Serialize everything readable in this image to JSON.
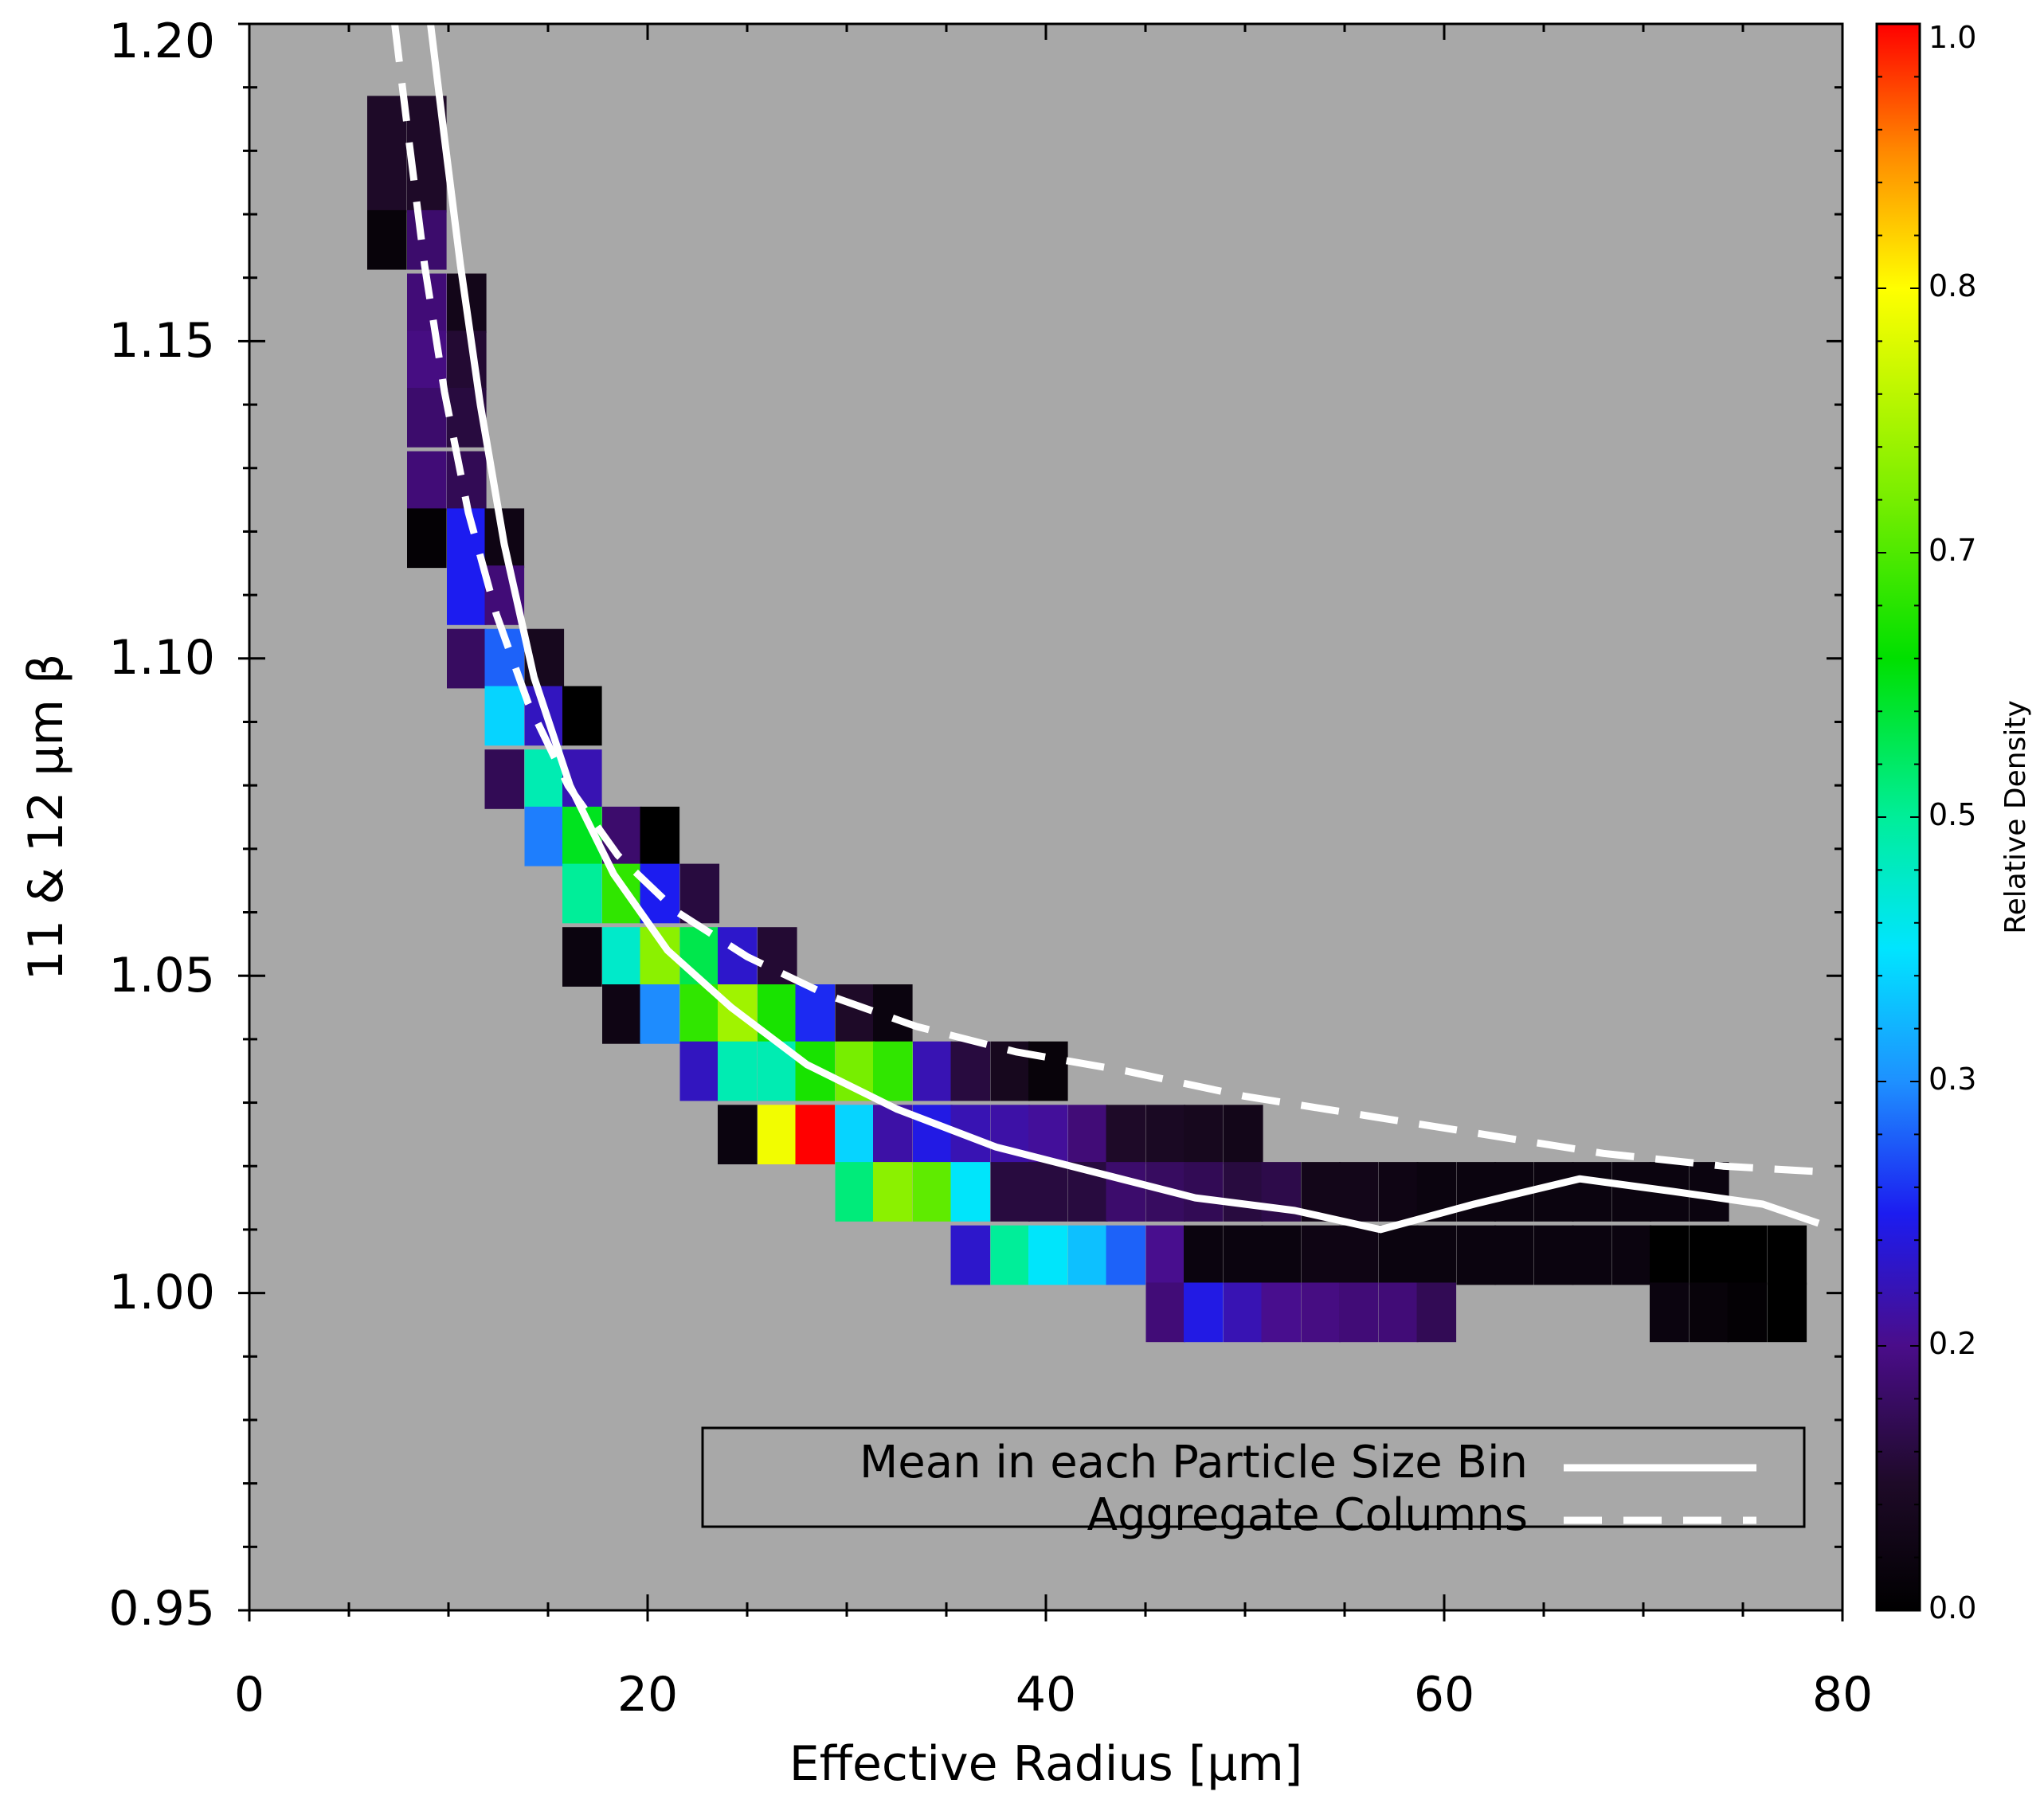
{
  "chart_data": {
    "type": "heatmap",
    "title": "",
    "xlabel": "Effective Radius [μm]",
    "ylabel": "11 & 12 μm β",
    "xlim": [
      0,
      80
    ],
    "ylim": [
      0.95,
      1.2
    ],
    "x_ticks": [
      "0",
      "20",
      "40",
      "60",
      "80"
    ],
    "x_tick_values": [
      0,
      20,
      40,
      60,
      80
    ],
    "y_ticks": [
      "0.95",
      "1.00",
      "1.05",
      "1.10",
      "1.15",
      "1.20"
    ],
    "y_tick_values": [
      0.95,
      1.0,
      1.05,
      1.1,
      1.15,
      1.2
    ],
    "colorbar": {
      "label": "Relative Density",
      "range": [
        0,
        1
      ],
      "ticks": [
        "0.0",
        "0.2",
        "0.3",
        "0.5",
        "0.7",
        "0.8",
        "1.0"
      ],
      "tick_values": [
        0.0,
        0.167,
        0.333,
        0.5,
        0.667,
        0.833,
        1.0
      ]
    },
    "bin": {
      "dx": 1.96,
      "dy": 0.0093
    },
    "cells": [
      [
        6.9,
        1.184,
        0.08
      ],
      [
        8.9,
        1.184,
        0.08
      ],
      [
        6.9,
        1.175,
        0.08
      ],
      [
        8.9,
        1.175,
        0.08
      ],
      [
        6.9,
        1.166,
        0.02
      ],
      [
        8.9,
        1.166,
        0.14
      ],
      [
        8.9,
        1.156,
        0.15
      ],
      [
        10.9,
        1.156,
        0.05
      ],
      [
        8.9,
        1.147,
        0.16
      ],
      [
        10.9,
        1.147,
        0.09
      ],
      [
        8.9,
        1.138,
        0.14
      ],
      [
        10.9,
        1.138,
        0.1
      ],
      [
        8.9,
        1.128,
        0.15
      ],
      [
        10.9,
        1.128,
        0.12
      ],
      [
        8.9,
        1.119,
        0.01
      ],
      [
        10.9,
        1.119,
        0.25
      ],
      [
        12.8,
        1.119,
        0.04
      ],
      [
        10.9,
        1.11,
        0.25
      ],
      [
        12.8,
        1.11,
        0.15
      ],
      [
        10.9,
        1.1,
        0.13
      ],
      [
        12.8,
        1.1,
        0.3
      ],
      [
        14.8,
        1.1,
        0.06
      ],
      [
        12.8,
        1.091,
        0.4
      ],
      [
        14.8,
        1.091,
        0.21
      ],
      [
        16.7,
        1.091,
        0.0
      ],
      [
        12.8,
        1.081,
        0.12
      ],
      [
        14.8,
        1.081,
        0.48
      ],
      [
        16.7,
        1.081,
        0.2
      ],
      [
        14.8,
        1.072,
        0.32
      ],
      [
        16.7,
        1.072,
        0.58
      ],
      [
        18.7,
        1.072,
        0.14
      ],
      [
        20.6,
        1.072,
        0.0
      ],
      [
        16.7,
        1.063,
        0.5
      ],
      [
        18.7,
        1.063,
        0.64
      ],
      [
        20.6,
        1.063,
        0.25
      ],
      [
        22.6,
        1.063,
        0.1
      ],
      [
        16.7,
        1.053,
        0.03
      ],
      [
        18.7,
        1.053,
        0.46
      ],
      [
        20.6,
        1.053,
        0.72
      ],
      [
        22.6,
        1.053,
        0.55
      ],
      [
        24.5,
        1.053,
        0.22
      ],
      [
        26.5,
        1.053,
        0.09
      ],
      [
        18.7,
        1.044,
        0.04
      ],
      [
        20.6,
        1.044,
        0.33
      ],
      [
        22.6,
        1.044,
        0.64
      ],
      [
        24.5,
        1.044,
        0.74
      ],
      [
        26.5,
        1.044,
        0.62
      ],
      [
        28.4,
        1.044,
        0.26
      ],
      [
        30.4,
        1.044,
        0.08
      ],
      [
        32.3,
        1.044,
        0.03
      ],
      [
        22.6,
        1.035,
        0.21
      ],
      [
        24.5,
        1.035,
        0.48
      ],
      [
        26.5,
        1.035,
        0.48
      ],
      [
        28.4,
        1.035,
        0.62
      ],
      [
        30.4,
        1.035,
        0.7
      ],
      [
        32.3,
        1.035,
        0.64
      ],
      [
        34.3,
        1.035,
        0.2
      ],
      [
        36.2,
        1.035,
        0.1
      ],
      [
        38.2,
        1.035,
        0.06
      ],
      [
        40.1,
        1.035,
        0.02
      ],
      [
        24.5,
        1.025,
        0.03
      ],
      [
        26.5,
        1.025,
        0.82
      ],
      [
        28.4,
        1.025,
        1.0
      ],
      [
        30.4,
        1.025,
        0.4
      ],
      [
        32.3,
        1.025,
        0.19
      ],
      [
        34.3,
        1.025,
        0.24
      ],
      [
        36.2,
        1.025,
        0.2
      ],
      [
        38.2,
        1.025,
        0.19
      ],
      [
        40.1,
        1.025,
        0.18
      ],
      [
        42.1,
        1.025,
        0.15
      ],
      [
        44.0,
        1.025,
        0.08
      ],
      [
        46.0,
        1.025,
        0.07
      ],
      [
        47.9,
        1.025,
        0.06
      ],
      [
        49.9,
        1.025,
        0.05
      ],
      [
        30.4,
        1.016,
        0.52
      ],
      [
        32.3,
        1.016,
        0.72
      ],
      [
        34.3,
        1.016,
        0.68
      ],
      [
        36.2,
        1.016,
        0.42
      ],
      [
        38.2,
        1.016,
        0.1
      ],
      [
        40.1,
        1.016,
        0.1
      ],
      [
        42.1,
        1.016,
        0.1
      ],
      [
        44.0,
        1.016,
        0.14
      ],
      [
        46.0,
        1.016,
        0.13
      ],
      [
        47.9,
        1.016,
        0.12
      ],
      [
        49.9,
        1.016,
        0.1
      ],
      [
        51.8,
        1.016,
        0.11
      ],
      [
        53.8,
        1.016,
        0.05
      ],
      [
        55.7,
        1.016,
        0.05
      ],
      [
        57.7,
        1.016,
        0.04
      ],
      [
        59.6,
        1.016,
        0.03
      ],
      [
        61.6,
        1.016,
        0.03
      ],
      [
        63.5,
        1.016,
        0.03
      ],
      [
        65.5,
        1.016,
        0.03
      ],
      [
        67.4,
        1.016,
        0.03
      ],
      [
        69.4,
        1.016,
        0.03
      ],
      [
        71.3,
        1.016,
        0.03
      ],
      [
        73.3,
        1.016,
        0.03
      ],
      [
        36.2,
        1.006,
        0.22
      ],
      [
        38.2,
        1.006,
        0.5
      ],
      [
        40.1,
        1.006,
        0.42
      ],
      [
        42.1,
        1.006,
        0.38
      ],
      [
        44.0,
        1.006,
        0.3
      ],
      [
        46.0,
        1.006,
        0.17
      ],
      [
        47.9,
        1.006,
        0.03
      ],
      [
        49.9,
        1.006,
        0.03
      ],
      [
        51.8,
        1.006,
        0.03
      ],
      [
        53.8,
        1.006,
        0.04
      ],
      [
        55.7,
        1.006,
        0.04
      ],
      [
        57.7,
        1.006,
        0.03
      ],
      [
        59.6,
        1.006,
        0.03
      ],
      [
        61.6,
        1.006,
        0.03
      ],
      [
        63.5,
        1.006,
        0.03
      ],
      [
        65.5,
        1.006,
        0.03
      ],
      [
        67.4,
        1.006,
        0.03
      ],
      [
        69.4,
        1.006,
        0.03
      ],
      [
        71.3,
        1.006,
        0.0
      ],
      [
        73.3,
        1.006,
        0.0
      ],
      [
        75.2,
        1.006,
        0.0
      ],
      [
        77.2,
        1.006,
        0.0
      ],
      [
        46.0,
        0.997,
        0.15
      ],
      [
        47.9,
        0.997,
        0.24
      ],
      [
        49.9,
        0.997,
        0.2
      ],
      [
        51.8,
        0.997,
        0.17
      ],
      [
        53.8,
        0.997,
        0.16
      ],
      [
        55.7,
        0.997,
        0.15
      ],
      [
        57.7,
        0.997,
        0.15
      ],
      [
        59.6,
        0.997,
        0.12
      ],
      [
        71.3,
        0.997,
        0.03
      ],
      [
        73.3,
        0.997,
        0.02
      ],
      [
        75.2,
        0.997,
        0.01
      ],
      [
        77.2,
        0.997,
        0.0
      ]
    ],
    "series": [
      {
        "name": "Mean in each Particle Size Bin",
        "style": "solid",
        "x": [
          9.1,
          9.8,
          10.6,
          11.6,
          12.8,
          14.3,
          16.1,
          18.3,
          21.0,
          24.2,
          28.0,
          32.5,
          37.5,
          42.5,
          47.5,
          52.5,
          56.8,
          61.5,
          66.8,
          71.5,
          76.0,
          78.8
        ],
        "y": [
          1.2,
          1.182,
          1.162,
          1.14,
          1.118,
          1.097,
          1.08,
          1.066,
          1.054,
          1.045,
          1.036,
          1.029,
          1.023,
          1.019,
          1.015,
          1.013,
          1.01,
          1.014,
          1.018,
          1.016,
          1.014,
          1.011
        ]
      },
      {
        "name": "Aggregate Columns",
        "style": "dashed",
        "x": [
          7.3,
          8.0,
          8.8,
          9.8,
          11.0,
          12.4,
          14.0,
          16.0,
          18.5,
          21.5,
          25.0,
          29.0,
          33.5,
          38.5,
          44.0,
          50.0,
          56.0,
          62.0,
          68.0,
          74.0,
          79.5
        ],
        "y": [
          1.2,
          1.182,
          1.162,
          1.142,
          1.123,
          1.107,
          1.093,
          1.08,
          1.069,
          1.06,
          1.053,
          1.047,
          1.042,
          1.038,
          1.035,
          1.031,
          1.028,
          1.025,
          1.022,
          1.02,
          1.019
        ]
      }
    ],
    "legend": {
      "position": "bottom-right",
      "entries": [
        "Mean in each Particle Size Bin",
        "Aggregate Columns"
      ]
    }
  },
  "colors": {
    "plot_background": "#a8a8a8",
    "line_color": "#ffffff"
  }
}
